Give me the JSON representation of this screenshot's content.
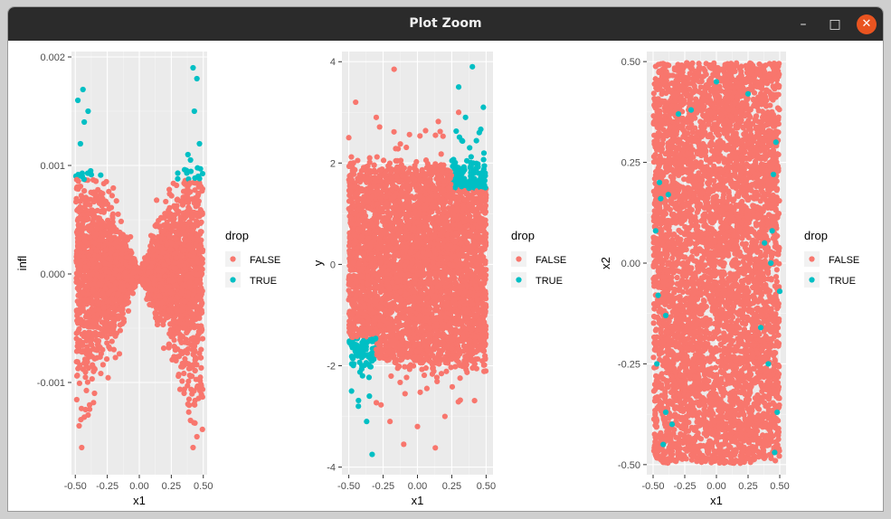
{
  "window": {
    "title": "Plot Zoom",
    "controls": {
      "minimize": "–",
      "maximize": "□",
      "close": "✕"
    }
  },
  "colors": {
    "false": "#F8766D",
    "true": "#00BFC4",
    "panel": "#EBEBEB",
    "grid_major": "#FFFFFF",
    "grid_minor": "#F5F5F5"
  },
  "chart_data": [
    {
      "type": "scatter",
      "title": "",
      "xlabel": "x1",
      "ylabel": "infl",
      "xlim": [
        -0.53,
        0.53
      ],
      "ylim": [
        -0.00185,
        0.00205
      ],
      "xticks": [
        -0.5,
        -0.25,
        0,
        0.25,
        0.5
      ],
      "xticklabels": [
        "-0.50",
        "-0.25",
        "0.00",
        "0.25",
        "0.50"
      ],
      "yticks": [
        -0.001,
        0,
        0.001,
        0.002
      ],
      "yticklabels": [
        "-0.001",
        "0.000",
        "0.001",
        "0.002"
      ],
      "legend": {
        "title": "drop",
        "position": "right",
        "entries": [
          "FALSE",
          "TRUE"
        ]
      },
      "grid": true,
      "pattern": "bowtie: infl spread grows with |x1|; TRUE where infl > 0.00087",
      "series": [
        {
          "name": "FALSE",
          "color": "#F8766D",
          "points": [
            [
              -0.47,
              -0.0014
            ],
            [
              -0.45,
              -0.0016
            ],
            [
              -0.4,
              -0.0013
            ],
            [
              -0.42,
              -0.00125
            ],
            [
              0.42,
              -0.0016
            ],
            [
              0.45,
              -0.0015
            ],
            [
              0.4,
              -0.00135
            ],
            [
              0.38,
              -0.0012
            ],
            [
              0.35,
              -0.0011
            ],
            [
              -0.35,
              -0.0011
            ]
          ]
        },
        {
          "name": "TRUE",
          "color": "#00BFC4",
          "points": [
            [
              -0.48,
              0.0016
            ],
            [
              -0.44,
              0.0017
            ],
            [
              -0.4,
              0.0015
            ],
            [
              -0.46,
              0.0012
            ],
            [
              -0.43,
              0.0014
            ],
            [
              0.42,
              0.0019
            ],
            [
              0.45,
              0.0018
            ],
            [
              0.43,
              0.0015
            ],
            [
              0.38,
              0.0011
            ],
            [
              0.47,
              0.0012
            ],
            [
              0.4,
              0.00105
            ],
            [
              -0.38,
              0.00095
            ],
            [
              -0.45,
              0.0009
            ],
            [
              0.46,
              0.0009
            ]
          ]
        }
      ]
    },
    {
      "type": "scatter",
      "title": "",
      "xlabel": "x1",
      "ylabel": "y",
      "xlim": [
        -0.55,
        0.55
      ],
      "ylim": [
        -4.15,
        4.2
      ],
      "xticks": [
        -0.5,
        -0.25,
        0,
        0.25,
        0.5
      ],
      "xticklabels": [
        "-0.50",
        "-0.25",
        "0.00",
        "0.25",
        "0.50"
      ],
      "yticks": [
        -4,
        -2,
        0,
        2,
        4
      ],
      "yticklabels": [
        "-4",
        "-2",
        "0",
        "2",
        "4"
      ],
      "legend": {
        "title": "drop",
        "position": "right",
        "entries": [
          "FALSE",
          "TRUE"
        ]
      },
      "grid": true,
      "pattern": "dense rectangular band around y=0 (|y|<2); TRUE at top-right and bottom-left corners",
      "series": [
        {
          "name": "FALSE",
          "color": "#F8766D",
          "points": [
            [
              -0.17,
              3.85
            ],
            [
              0.13,
              -3.62
            ],
            [
              -0.1,
              -3.55
            ],
            [
              -0.2,
              -3.1
            ],
            [
              0.0,
              -3.2
            ],
            [
              -0.45,
              3.2
            ],
            [
              0.3,
              3.0
            ],
            [
              -0.3,
              2.9
            ],
            [
              0.2,
              -3.0
            ],
            [
              -0.5,
              2.5
            ]
          ]
        },
        {
          "name": "TRUE",
          "color": "#00BFC4",
          "points": [
            [
              0.4,
              3.9
            ],
            [
              0.3,
              3.5
            ],
            [
              0.48,
              3.1
            ],
            [
              0.35,
              2.9
            ],
            [
              0.45,
              2.6
            ],
            [
              0.38,
              2.3
            ],
            [
              0.48,
              1.7
            ],
            [
              -0.33,
              -3.75
            ],
            [
              -0.37,
              -3.1
            ],
            [
              -0.43,
              -2.8
            ],
            [
              -0.48,
              -2.5
            ],
            [
              -0.4,
              -2.2
            ],
            [
              -0.48,
              -1.6
            ],
            [
              -0.35,
              -2.6
            ]
          ]
        }
      ]
    },
    {
      "type": "scatter",
      "title": "",
      "xlabel": "x1",
      "ylabel": "x2",
      "xlim": [
        -0.55,
        0.55
      ],
      "ylim": [
        -0.525,
        0.525
      ],
      "xticks": [
        -0.5,
        -0.25,
        0,
        0.25,
        0.5
      ],
      "xticklabels": [
        "-0.50",
        "-0.25",
        "0.00",
        "0.25",
        "0.50"
      ],
      "yticks": [
        -0.5,
        -0.25,
        0,
        0.25,
        0.5
      ],
      "yticklabels": [
        "-0.50",
        "-0.25",
        "0.00",
        "0.25",
        "0.50"
      ],
      "legend": {
        "title": "drop",
        "position": "right",
        "entries": [
          "FALSE",
          "TRUE"
        ]
      },
      "grid": true,
      "pattern": "uniform fill of square [-0.5,0.5]x[-0.5,0.5]; TRUE points scattered mostly near left and right edges",
      "series": [
        {
          "name": "FALSE",
          "color": "#F8766D",
          "points": []
        },
        {
          "name": "TRUE",
          "color": "#00BFC4",
          "points": [
            [
              -0.45,
              0.2
            ],
            [
              -0.42,
              -0.45
            ],
            [
              -0.4,
              -0.37
            ],
            [
              -0.48,
              0.08
            ],
            [
              -0.46,
              -0.08
            ],
            [
              -0.44,
              0.16
            ],
            [
              -0.38,
              0.17
            ],
            [
              -0.35,
              -0.4
            ],
            [
              -0.47,
              -0.25
            ],
            [
              -0.4,
              -0.13
            ],
            [
              0.47,
              0.3
            ],
            [
              0.45,
              0.22
            ],
            [
              0.43,
              0.0
            ],
            [
              0.48,
              -0.37
            ],
            [
              0.41,
              -0.25
            ],
            [
              0.35,
              -0.16
            ],
            [
              0.46,
              -0.47
            ],
            [
              0.44,
              0.08
            ],
            [
              0.38,
              0.05
            ],
            [
              0.5,
              -0.07
            ],
            [
              -0.3,
              0.37
            ],
            [
              0.0,
              0.45
            ],
            [
              -0.2,
              0.38
            ],
            [
              0.25,
              0.42
            ]
          ]
        }
      ]
    }
  ]
}
